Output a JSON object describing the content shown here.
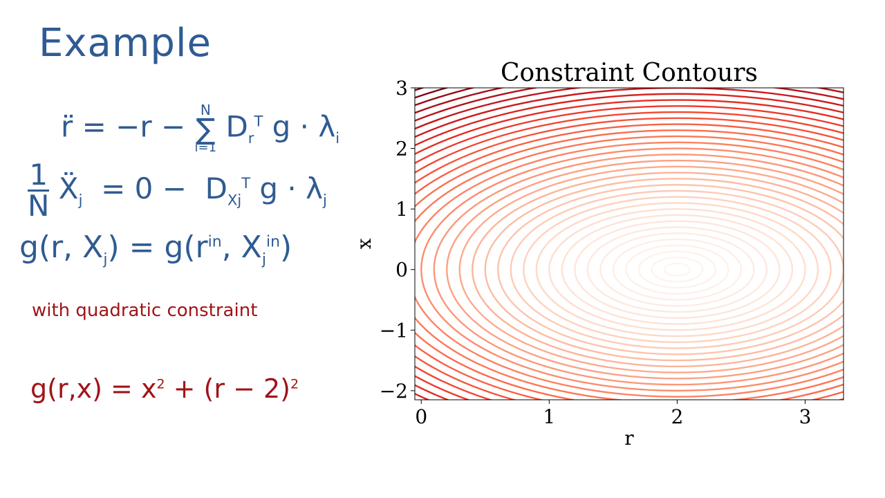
{
  "notes": {
    "title": "Example",
    "eq1": {
      "lhs": "r̈ = −r",
      "minus": "−",
      "sum": "∑",
      "sum_top": "N",
      "sum_bottom": "i=1",
      "term": "D",
      "term_sub": "r",
      "term_sup": "T",
      "rest": "g · λ",
      "rest_sub": "i"
    },
    "eq2": {
      "frac_num": "1",
      "frac_den": "N",
      "var": "Ẍ",
      "var_sub": "j",
      "mid": " = 0 − ",
      "term": "D",
      "term_sub": "Xj",
      "term_sup": "T",
      "rest": "g · λ",
      "rest_sub": "j"
    },
    "eq3": {
      "text_a": "g(r, X",
      "sub_a": "j",
      "text_b": ") = g(r",
      "sup_b": "in",
      "text_c": ", X",
      "sub_c": "j",
      "sup_c": "in",
      "text_d": ")"
    },
    "with_text": "with quadratic constraint",
    "eq4": {
      "text_a": "g(r,x) = x",
      "sup_a": "2",
      "text_b": " + (r − 2)",
      "sup_b": "2"
    }
  },
  "chart_data": {
    "type": "contour",
    "title": "Constraint Contours",
    "xlabel": "r",
    "ylabel": "x",
    "function": "x^2 + (r - 2)^2",
    "center": {
      "r": 2,
      "x": 0
    },
    "xlim": [
      -0.05,
      3.3
    ],
    "ylim": [
      -2.15,
      3.0
    ],
    "xticks": [
      0,
      1,
      2,
      3
    ],
    "xtick_labels": [
      "0",
      "1",
      "2",
      "3"
    ],
    "yticks": [
      -2,
      -1,
      0,
      1,
      2,
      3
    ],
    "ytick_labels": [
      "−2",
      "−1",
      "0",
      "1",
      "2",
      "3"
    ],
    "colormap": "Reds",
    "color_low": "#fff5f0",
    "color_high": "#67000d",
    "levels": [
      0.1,
      0.2,
      0.3,
      0.4,
      0.5,
      0.6,
      0.7,
      0.8,
      0.9,
      1.0,
      1.1,
      1.2,
      1.3,
      1.4,
      1.5,
      1.6,
      1.7,
      1.8,
      1.9,
      2.0,
      2.1,
      2.2,
      2.3,
      2.4,
      2.5,
      2.6,
      2.7,
      2.8,
      2.9,
      3.0,
      3.1,
      3.2,
      3.3,
      3.4,
      3.5,
      3.6
    ]
  }
}
